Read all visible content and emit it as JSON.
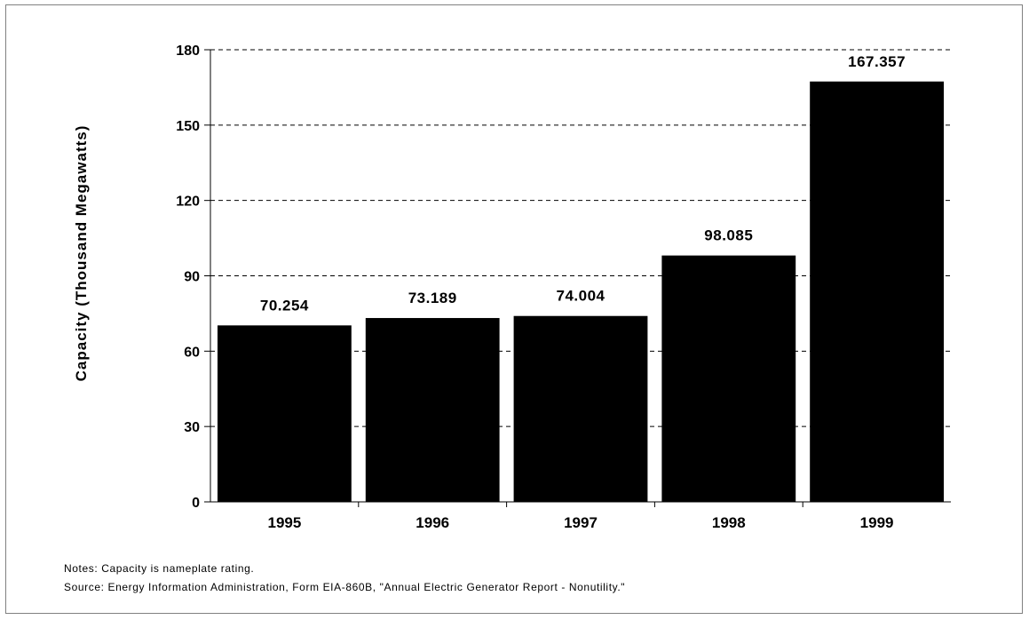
{
  "chart_data": {
    "type": "bar",
    "categories": [
      "1995",
      "1996",
      "1997",
      "1998",
      "1999"
    ],
    "values": [
      70.254,
      73.189,
      74.004,
      98.085,
      167.357
    ],
    "data_labels": [
      "70.254",
      "73.189",
      "74.004",
      "98.085",
      "167.357"
    ],
    "title": "",
    "xlabel": "",
    "ylabel": "Capacity  (Thousand Megawatts)",
    "ylim": [
      0,
      180
    ],
    "yticks": [
      0,
      30,
      60,
      90,
      120,
      150,
      180
    ],
    "grid": "horizontal-dashed",
    "legend": "none",
    "bar_color": "#000000"
  },
  "notes": {
    "notes_text": "Notes:  Capacity is nameplate rating.",
    "source_text": "Source:  Energy Information Administration, Form EIA-860B, \"Annual Electric Generator Report - Nonutility.\""
  }
}
